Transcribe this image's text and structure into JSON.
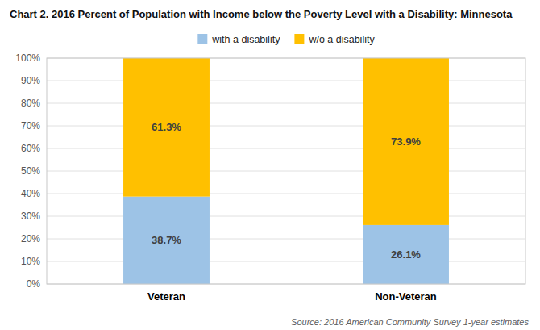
{
  "chart_data": {
    "type": "bar",
    "stacked": true,
    "title": "Chart 2.  2016 Percent of Population with Income below the Poverty Level with a Disability: Minnesota",
    "categories": [
      "Veteran",
      "Non-Veteran"
    ],
    "series": [
      {
        "name": "with a disability",
        "color": "#9DC3E6",
        "values": [
          38.7,
          26.1
        ],
        "value_labels": [
          "38.7%",
          "26.1%"
        ]
      },
      {
        "name": "w/o a disability",
        "color": "#FFC000",
        "values": [
          61.3,
          73.9
        ],
        "value_labels": [
          "61.3%",
          "73.9%"
        ]
      }
    ],
    "ylim": [
      0,
      100
    ],
    "yticks": [
      {
        "value": 0,
        "label": "0%"
      },
      {
        "value": 10,
        "label": "10%"
      },
      {
        "value": 20,
        "label": "20%"
      },
      {
        "value": 30,
        "label": "30%"
      },
      {
        "value": 40,
        "label": "40%"
      },
      {
        "value": 50,
        "label": "50%"
      },
      {
        "value": 60,
        "label": "60%"
      },
      {
        "value": 70,
        "label": "70%"
      },
      {
        "value": 80,
        "label": "80%"
      },
      {
        "value": 90,
        "label": "90%"
      },
      {
        "value": 100,
        "label": "100%"
      }
    ],
    "grid": true,
    "legend": "top",
    "data_labels": true,
    "annotations": [
      "Source: 2016 American Community Survey 1-year estimates"
    ]
  }
}
